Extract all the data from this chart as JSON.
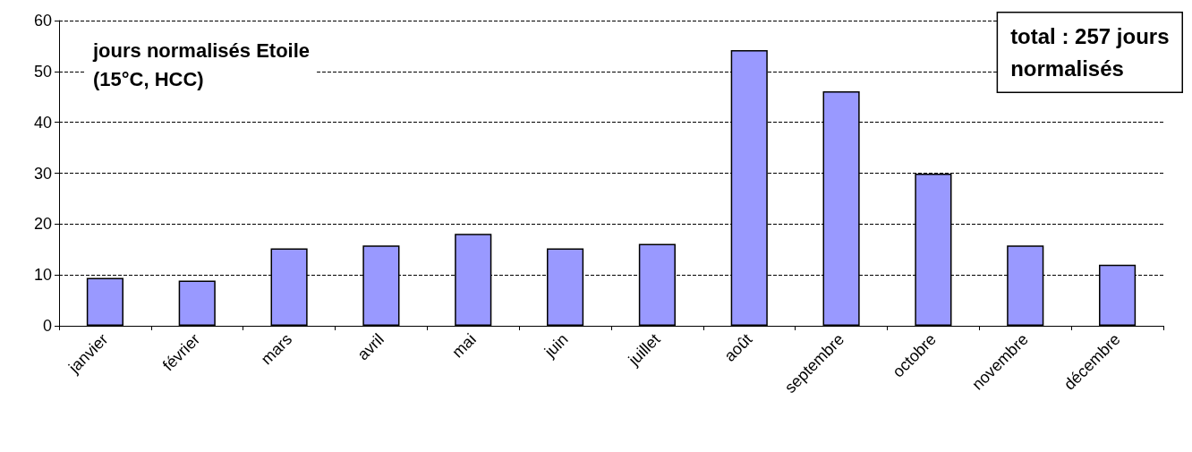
{
  "chart_data": {
    "type": "bar",
    "title": "jours normalisés Etoile\n(15°C, HCC)",
    "categories": [
      "janvier",
      "février",
      "mars",
      "avril",
      "mai",
      "juin",
      "juillet",
      "août",
      "septembre",
      "octobre",
      "novembre",
      "décembre"
    ],
    "values": [
      9.4,
      8.9,
      15.2,
      15.8,
      18.1,
      15.2,
      16.1,
      54.2,
      46.1,
      29.9,
      15.8,
      12.0
    ],
    "color": "#9999ff",
    "ylim": [
      0,
      60
    ],
    "yticks": [
      0,
      10,
      20,
      30,
      40,
      50,
      60
    ],
    "grid": "y",
    "annotations": [
      "total : 257 jours\nnormalisés"
    ]
  }
}
